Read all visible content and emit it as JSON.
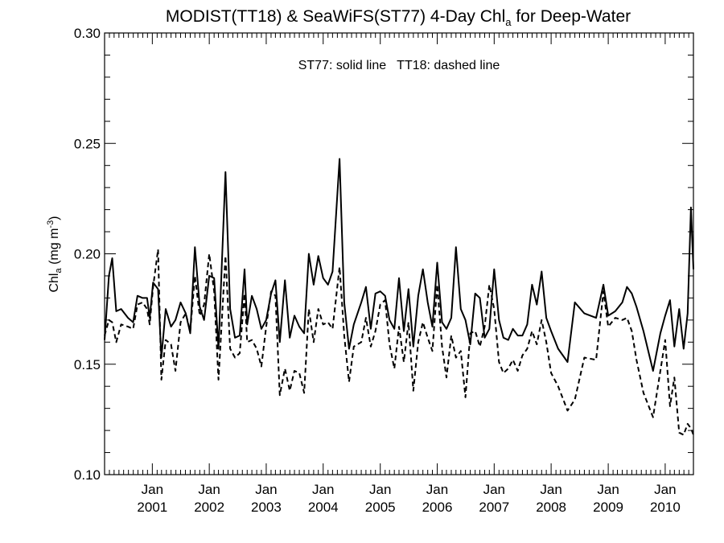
{
  "chart_data": {
    "type": "line",
    "title": {
      "main": "MODIST(TT18) & SeaWiFS(ST77) 4-Day Chl",
      "sub": "a",
      "tail": " for Deep-Water"
    },
    "annotation": "ST77: solid line   TT18: dashed line",
    "ylabel": {
      "main": "Chl",
      "sub": "a",
      "unit_open": " (mg m",
      "unit_sup": "-3",
      "unit_close": ")"
    },
    "ylim": [
      0.1,
      0.3
    ],
    "xlim": [
      "2000-03-01",
      "2010-07-01"
    ],
    "y_ticks": [
      "0.10",
      "0.15",
      "0.20",
      "0.25",
      "0.30"
    ],
    "x_ticks": [
      {
        "date": "2001-01-01",
        "month": "Jan",
        "year": "2001"
      },
      {
        "date": "2002-01-01",
        "month": "Jan",
        "year": "2002"
      },
      {
        "date": "2003-01-01",
        "month": "Jan",
        "year": "2003"
      },
      {
        "date": "2004-01-01",
        "month": "Jan",
        "year": "2004"
      },
      {
        "date": "2005-01-01",
        "month": "Jan",
        "year": "2005"
      },
      {
        "date": "2006-01-01",
        "month": "Jan",
        "year": "2006"
      },
      {
        "date": "2007-01-01",
        "month": "Jan",
        "year": "2007"
      },
      {
        "date": "2008-01-01",
        "month": "Jan",
        "year": "2008"
      },
      {
        "date": "2009-01-01",
        "month": "Jan",
        "year": "2009"
      },
      {
        "date": "2010-01-01",
        "month": "Jan",
        "year": "2010"
      }
    ],
    "series": [
      {
        "style": "solid",
        "points": [
          [
            "2000-03-01",
            0.161
          ],
          [
            "2000-03-29",
            0.19
          ],
          [
            "2000-04-19",
            0.198
          ],
          [
            "2000-05-15",
            0.174
          ],
          [
            "2000-06-15",
            0.175
          ],
          [
            "2000-07-29",
            0.171
          ],
          [
            "2000-08-31",
            0.169
          ],
          [
            "2000-09-28",
            0.181
          ],
          [
            "2000-10-31",
            0.18
          ],
          [
            "2000-11-28",
            0.18
          ],
          [
            "2000-12-15",
            0.171
          ],
          [
            "2001-01-06",
            0.187
          ],
          [
            "2001-02-07",
            0.184
          ],
          [
            "2001-02-28",
            0.153
          ],
          [
            "2001-03-28",
            0.175
          ],
          [
            "2001-05-01",
            0.167
          ],
          [
            "2001-05-29",
            0.17
          ],
          [
            "2001-07-01",
            0.178
          ],
          [
            "2001-08-03",
            0.173
          ],
          [
            "2001-09-01",
            0.164
          ],
          [
            "2001-10-01",
            0.203
          ],
          [
            "2001-11-01",
            0.176
          ],
          [
            "2001-11-29",
            0.17
          ],
          [
            "2002-01-01",
            0.19
          ],
          [
            "2002-02-01",
            0.189
          ],
          [
            "2002-03-01",
            0.157
          ],
          [
            "2002-04-15",
            0.237
          ],
          [
            "2002-05-15",
            0.175
          ],
          [
            "2002-06-15",
            0.162
          ],
          [
            "2002-07-15",
            0.163
          ],
          [
            "2002-08-15",
            0.193
          ],
          [
            "2002-09-01",
            0.168
          ],
          [
            "2002-10-01",
            0.181
          ],
          [
            "2002-11-01",
            0.175
          ],
          [
            "2002-12-01",
            0.166
          ],
          [
            "2003-01-01",
            0.17
          ],
          [
            "2003-02-01",
            0.182
          ],
          [
            "2003-03-01",
            0.188
          ],
          [
            "2003-03-29",
            0.16
          ],
          [
            "2003-05-01",
            0.188
          ],
          [
            "2003-06-01",
            0.162
          ],
          [
            "2003-07-01",
            0.172
          ],
          [
            "2003-08-01",
            0.167
          ],
          [
            "2003-09-01",
            0.164
          ],
          [
            "2003-10-01",
            0.2
          ],
          [
            "2003-11-01",
            0.186
          ],
          [
            "2003-12-01",
            0.199
          ],
          [
            "2004-01-01",
            0.189
          ],
          [
            "2004-02-01",
            0.186
          ],
          [
            "2004-03-01",
            0.192
          ],
          [
            "2004-04-15",
            0.243
          ],
          [
            "2004-05-15",
            0.178
          ],
          [
            "2004-06-15",
            0.157
          ],
          [
            "2004-07-15",
            0.168
          ],
          [
            "2004-09-01",
            0.178
          ],
          [
            "2004-10-01",
            0.185
          ],
          [
            "2004-11-01",
            0.166
          ],
          [
            "2004-12-01",
            0.182
          ],
          [
            "2005-01-01",
            0.183
          ],
          [
            "2005-02-01",
            0.181
          ],
          [
            "2005-03-01",
            0.17
          ],
          [
            "2005-04-01",
            0.166
          ],
          [
            "2005-05-01",
            0.189
          ],
          [
            "2005-06-01",
            0.165
          ],
          [
            "2005-07-01",
            0.184
          ],
          [
            "2005-08-01",
            0.158
          ],
          [
            "2005-09-01",
            0.181
          ],
          [
            "2005-10-01",
            0.193
          ],
          [
            "2005-11-01",
            0.178
          ],
          [
            "2005-12-01",
            0.167
          ],
          [
            "2006-01-01",
            0.196
          ],
          [
            "2006-02-01",
            0.169
          ],
          [
            "2006-03-01",
            0.166
          ],
          [
            "2006-04-01",
            0.171
          ],
          [
            "2006-05-01",
            0.203
          ],
          [
            "2006-06-01",
            0.175
          ],
          [
            "2006-07-01",
            0.17
          ],
          [
            "2006-08-01",
            0.159
          ],
          [
            "2006-09-01",
            0.182
          ],
          [
            "2006-10-01",
            0.18
          ],
          [
            "2006-11-01",
            0.162
          ],
          [
            "2006-12-01",
            0.166
          ],
          [
            "2007-01-01",
            0.193
          ],
          [
            "2007-02-01",
            0.17
          ],
          [
            "2007-03-01",
            0.162
          ],
          [
            "2007-04-01",
            0.161
          ],
          [
            "2007-05-01",
            0.166
          ],
          [
            "2007-06-01",
            0.163
          ],
          [
            "2007-07-01",
            0.163
          ],
          [
            "2007-08-01",
            0.168
          ],
          [
            "2007-09-01",
            0.186
          ],
          [
            "2007-10-01",
            0.177
          ],
          [
            "2007-11-01",
            0.192
          ],
          [
            "2007-12-01",
            0.171
          ],
          [
            "2008-01-01",
            0.165
          ],
          [
            "2008-02-15",
            0.157
          ],
          [
            "2008-04-15",
            0.151
          ],
          [
            "2008-06-01",
            0.178
          ],
          [
            "2008-08-01",
            0.173
          ],
          [
            "2008-10-15",
            0.171
          ],
          [
            "2008-12-01",
            0.186
          ],
          [
            "2009-01-01",
            0.172
          ],
          [
            "2009-02-15",
            0.174
          ],
          [
            "2009-04-01",
            0.178
          ],
          [
            "2009-05-01",
            0.185
          ],
          [
            "2009-06-01",
            0.182
          ],
          [
            "2009-07-01",
            0.176
          ],
          [
            "2009-08-15",
            0.165
          ],
          [
            "2009-10-15",
            0.147
          ],
          [
            "2009-12-01",
            0.164
          ],
          [
            "2010-01-01",
            0.172
          ],
          [
            "2010-02-01",
            0.179
          ],
          [
            "2010-03-01",
            0.158
          ],
          [
            "2010-04-01",
            0.175
          ],
          [
            "2010-04-29",
            0.157
          ],
          [
            "2010-05-25",
            0.173
          ],
          [
            "2010-06-15",
            0.221
          ],
          [
            "2010-07-01",
            0.193
          ]
        ]
      },
      {
        "style": "dashed",
        "points": [
          [
            "2000-03-01",
            0.163
          ],
          [
            "2000-03-29",
            0.17
          ],
          [
            "2000-04-19",
            0.169
          ],
          [
            "2000-05-15",
            0.16
          ],
          [
            "2000-06-15",
            0.168
          ],
          [
            "2000-07-29",
            0.167
          ],
          [
            "2000-08-31",
            0.166
          ],
          [
            "2000-09-28",
            0.177
          ],
          [
            "2000-10-31",
            0.178
          ],
          [
            "2000-11-28",
            0.175
          ],
          [
            "2000-12-15",
            0.168
          ],
          [
            "2001-01-06",
            0.185
          ],
          [
            "2001-02-07",
            0.202
          ],
          [
            "2001-02-28",
            0.143
          ],
          [
            "2001-03-28",
            0.161
          ],
          [
            "2001-05-01",
            0.159
          ],
          [
            "2001-05-29",
            0.147
          ],
          [
            "2001-07-01",
            0.169
          ],
          [
            "2001-08-03",
            0.173
          ],
          [
            "2001-09-01",
            0.165
          ],
          [
            "2001-10-01",
            0.19
          ],
          [
            "2001-11-01",
            0.172
          ],
          [
            "2001-11-29",
            0.177
          ],
          [
            "2002-01-01",
            0.2
          ],
          [
            "2002-02-01",
            0.183
          ],
          [
            "2002-03-01",
            0.143
          ],
          [
            "2002-04-15",
            0.199
          ],
          [
            "2002-05-15",
            0.157
          ],
          [
            "2002-06-15",
            0.153
          ],
          [
            "2002-07-15",
            0.155
          ],
          [
            "2002-08-15",
            0.182
          ],
          [
            "2002-09-01",
            0.16
          ],
          [
            "2002-10-01",
            0.161
          ],
          [
            "2002-11-01",
            0.157
          ],
          [
            "2002-12-01",
            0.149
          ],
          [
            "2003-01-01",
            0.167
          ],
          [
            "2003-02-01",
            0.183
          ],
          [
            "2003-03-01",
            0.181
          ],
          [
            "2003-03-29",
            0.136
          ],
          [
            "2003-05-01",
            0.148
          ],
          [
            "2003-06-01",
            0.138
          ],
          [
            "2003-07-01",
            0.147
          ],
          [
            "2003-08-01",
            0.146
          ],
          [
            "2003-09-01",
            0.137
          ],
          [
            "2003-10-01",
            0.175
          ],
          [
            "2003-11-01",
            0.16
          ],
          [
            "2003-12-01",
            0.175
          ],
          [
            "2004-01-01",
            0.168
          ],
          [
            "2004-02-01",
            0.169
          ],
          [
            "2004-03-01",
            0.166
          ],
          [
            "2004-04-15",
            0.194
          ],
          [
            "2004-05-15",
            0.163
          ],
          [
            "2004-06-15",
            0.142
          ],
          [
            "2004-07-15",
            0.158
          ],
          [
            "2004-09-01",
            0.16
          ],
          [
            "2004-10-01",
            0.171
          ],
          [
            "2004-11-01",
            0.158
          ],
          [
            "2004-12-01",
            0.165
          ],
          [
            "2005-01-01",
            0.177
          ],
          [
            "2005-02-01",
            0.179
          ],
          [
            "2005-03-01",
            0.159
          ],
          [
            "2005-04-01",
            0.148
          ],
          [
            "2005-05-01",
            0.167
          ],
          [
            "2005-06-01",
            0.151
          ],
          [
            "2005-07-01",
            0.169
          ],
          [
            "2005-08-01",
            0.138
          ],
          [
            "2005-09-01",
            0.16
          ],
          [
            "2005-10-01",
            0.169
          ],
          [
            "2005-11-01",
            0.162
          ],
          [
            "2005-12-01",
            0.156
          ],
          [
            "2006-01-01",
            0.186
          ],
          [
            "2006-02-01",
            0.158
          ],
          [
            "2006-03-01",
            0.144
          ],
          [
            "2006-04-01",
            0.163
          ],
          [
            "2006-05-01",
            0.153
          ],
          [
            "2006-06-01",
            0.156
          ],
          [
            "2006-07-01",
            0.135
          ],
          [
            "2006-08-01",
            0.164
          ],
          [
            "2006-09-01",
            0.165
          ],
          [
            "2006-10-01",
            0.158
          ],
          [
            "2006-11-01",
            0.167
          ],
          [
            "2006-12-01",
            0.186
          ],
          [
            "2007-01-01",
            0.175
          ],
          [
            "2007-02-01",
            0.151
          ],
          [
            "2007-03-01",
            0.146
          ],
          [
            "2007-04-01",
            0.148
          ],
          [
            "2007-05-01",
            0.152
          ],
          [
            "2007-06-01",
            0.147
          ],
          [
            "2007-07-01",
            0.154
          ],
          [
            "2007-08-01",
            0.157
          ],
          [
            "2007-09-01",
            0.165
          ],
          [
            "2007-10-01",
            0.159
          ],
          [
            "2007-11-01",
            0.17
          ],
          [
            "2007-12-01",
            0.16
          ],
          [
            "2008-01-01",
            0.146
          ],
          [
            "2008-02-15",
            0.14
          ],
          [
            "2008-04-15",
            0.129
          ],
          [
            "2008-06-01",
            0.134
          ],
          [
            "2008-08-01",
            0.153
          ],
          [
            "2008-10-15",
            0.152
          ],
          [
            "2008-12-01",
            0.183
          ],
          [
            "2009-01-01",
            0.167
          ],
          [
            "2009-02-15",
            0.171
          ],
          [
            "2009-04-01",
            0.17
          ],
          [
            "2009-05-01",
            0.171
          ],
          [
            "2009-06-01",
            0.165
          ],
          [
            "2009-07-01",
            0.152
          ],
          [
            "2009-08-15",
            0.137
          ],
          [
            "2009-10-15",
            0.126
          ],
          [
            "2009-12-01",
            0.147
          ],
          [
            "2010-01-01",
            0.161
          ],
          [
            "2010-02-01",
            0.131
          ],
          [
            "2010-03-01",
            0.144
          ],
          [
            "2010-04-01",
            0.119
          ],
          [
            "2010-04-29",
            0.118
          ],
          [
            "2010-05-25",
            0.123
          ],
          [
            "2010-06-15",
            0.121
          ],
          [
            "2010-07-01",
            0.118
          ]
        ]
      }
    ]
  }
}
